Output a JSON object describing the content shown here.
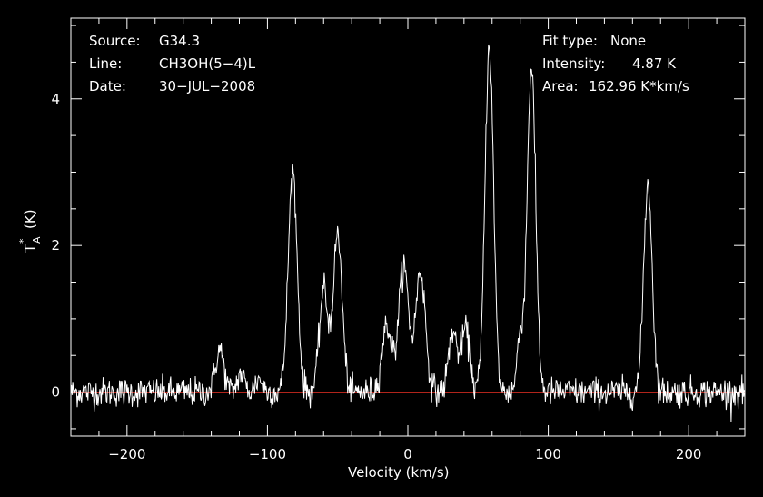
{
  "chart_data": {
    "type": "line",
    "xlabel": "Velocity (km/s)",
    "ylabel_main": "T",
    "ylabel_sub": "A",
    "ylabel_sup": "*",
    "ylabel_unit": "(K)",
    "xlim": [
      -240,
      240
    ],
    "ylim": [
      -0.6,
      5.1
    ],
    "xticks": [
      -200,
      -100,
      0,
      100,
      200
    ],
    "xtick_labels": [
      "−200",
      "−100",
      "0",
      "100",
      "200"
    ],
    "yticks": [
      0,
      2,
      4
    ],
    "ytick_labels": [
      "0",
      "2",
      "4"
    ],
    "grid": false,
    "baseline": 0,
    "colors": {
      "background": "#000000",
      "spectrum": "#ffffff",
      "baseline": "#cc2a1f",
      "axes": "#ffffff"
    },
    "info_left": [
      {
        "key": "Source:",
        "value": "G34.3"
      },
      {
        "key": "Line:",
        "value": "CH3OH(5−4)L"
      },
      {
        "key": "Date:",
        "value": "30−JUL−2008"
      }
    ],
    "info_right": [
      {
        "key": "Fit type:",
        "value": "None"
      },
      {
        "key": "Intensity:",
        "value": "4.87 K"
      },
      {
        "key": "Area:",
        "value": "162.96 K*km/s"
      }
    ],
    "noise_rms": 0.1,
    "peaks": [
      {
        "v": -134,
        "amp": 0.58,
        "width": 3.0
      },
      {
        "v": -119,
        "amp": 0.25,
        "width": 2.5
      },
      {
        "v": -106,
        "amp": 0.18,
        "width": 2.5
      },
      {
        "v": -82,
        "amp": 3.0,
        "width": 3.2
      },
      {
        "v": -60,
        "amp": 1.4,
        "width": 3.0
      },
      {
        "v": -50,
        "amp": 2.15,
        "width": 3.2
      },
      {
        "v": -15,
        "amp": 0.9,
        "width": 3.5
      },
      {
        "v": -3,
        "amp": 1.72,
        "width": 3.5
      },
      {
        "v": 9,
        "amp": 1.65,
        "width": 3.5
      },
      {
        "v": 32,
        "amp": 0.82,
        "width": 3.0
      },
      {
        "v": 41,
        "amp": 0.85,
        "width": 3.0
      },
      {
        "v": 58,
        "amp": 4.75,
        "width": 3.0
      },
      {
        "v": 80,
        "amp": 0.75,
        "width": 2.2
      },
      {
        "v": 88,
        "amp": 4.45,
        "width": 3.0
      },
      {
        "v": 171,
        "amp": 2.85,
        "width": 3.0
      }
    ]
  }
}
